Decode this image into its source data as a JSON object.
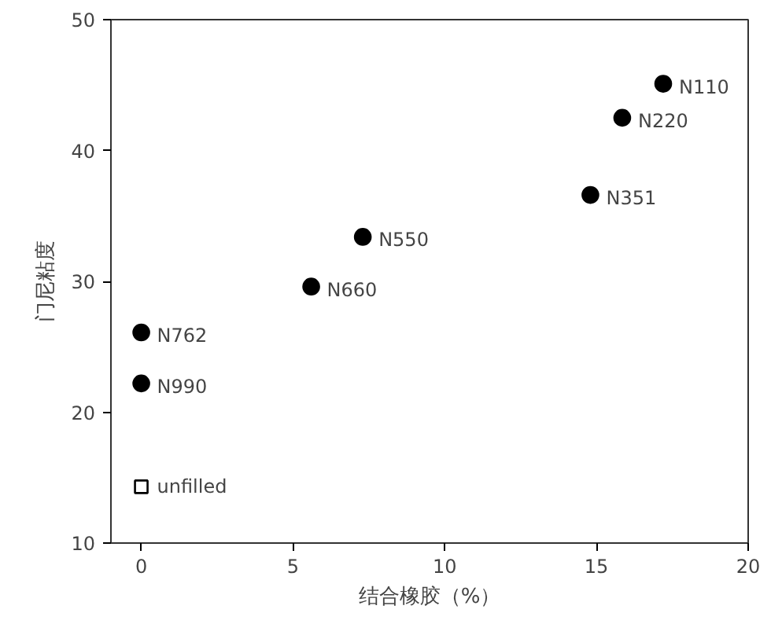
{
  "chart_data": {
    "type": "scatter",
    "xlabel": "结合橡胶（%）",
    "ylabel": "门尼粘度",
    "xlim": [
      -1,
      20
    ],
    "xticks": [
      0,
      5,
      10,
      15,
      20
    ],
    "ylim": [
      10,
      50
    ],
    "yticks": [
      10,
      20,
      30,
      40,
      50
    ],
    "grid": false,
    "series": [
      {
        "color": "#000000",
        "marker": "circle",
        "x": [
          0,
          0,
          5.6,
          7.3,
          14.8,
          15.85,
          17.2
        ],
        "values": [
          22.2,
          26.1,
          29.6,
          33.4,
          36.6,
          42.5,
          45.1
        ]
      },
      {
        "name": "unfilled",
        "color": "#000000",
        "marker": "square",
        "x": [
          0
        ],
        "values": [
          14.3
        ]
      }
    ],
    "annotations": [
      {
        "text": "N990",
        "x": 0,
        "y": 22.2
      },
      {
        "text": "N762",
        "x": 0,
        "y": 26.1
      },
      {
        "text": "N660",
        "x": 5.6,
        "y": 29.6
      },
      {
        "text": "N550",
        "x": 7.3,
        "y": 33.4
      },
      {
        "text": "N351",
        "x": 14.8,
        "y": 36.6
      },
      {
        "text": "N220",
        "x": 15.85,
        "y": 42.5
      },
      {
        "text": "N110",
        "x": 17.2,
        "y": 45.1
      }
    ]
  }
}
